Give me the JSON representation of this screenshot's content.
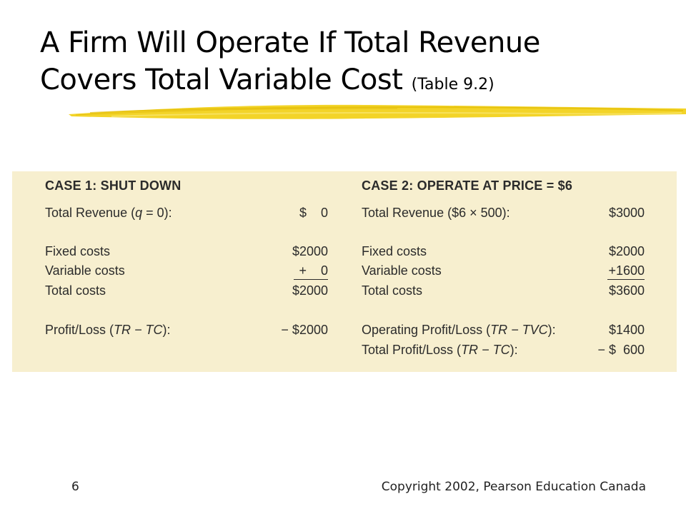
{
  "slide": {
    "title_line1": "A Firm Will Operate If Total Revenue",
    "title_line2": "Covers Total Variable Cost",
    "title_ref": "(Table 9.2)",
    "page_number": "6",
    "copyright": "Copyright 2002, Pearson Education Canada",
    "brush_color": "#f2d21c"
  },
  "table": {
    "background": "#f7efcf",
    "case1": {
      "heading": "CASE 1: SHUT DOWN",
      "revenue_label_pre": "Total Revenue (",
      "revenue_label_var": "q",
      "revenue_label_post": " = 0):",
      "revenue_value": "$    0",
      "fixed_label": "Fixed costs",
      "fixed_value": "$2000",
      "variable_label": "Variable costs",
      "variable_value": "+    0",
      "total_label": "Total costs",
      "total_value": "$2000",
      "profit_label_pre": "Profit/Loss (",
      "profit_label_var": "TR − TC",
      "profit_label_post": "):",
      "profit_value": "− $2000"
    },
    "case2": {
      "heading": "CASE 2: OPERATE AT PRICE = $6",
      "revenue_label": "Total Revenue ($6 × 500):",
      "revenue_value": "$3000",
      "fixed_label": "Fixed costs",
      "fixed_value": "$2000",
      "variable_label": "Variable costs",
      "variable_value": "+1600",
      "total_label": "Total costs",
      "total_value": "$3600",
      "op_profit_label_pre": "Operating Profit/Loss (",
      "op_profit_label_var": "TR − TVC",
      "op_profit_label_post": "):",
      "op_profit_value": "$1400",
      "total_profit_label_pre": "Total Profit/Loss (",
      "total_profit_label_var": "TR − TC",
      "total_profit_label_post": "):",
      "total_profit_value": "− $  600"
    }
  }
}
